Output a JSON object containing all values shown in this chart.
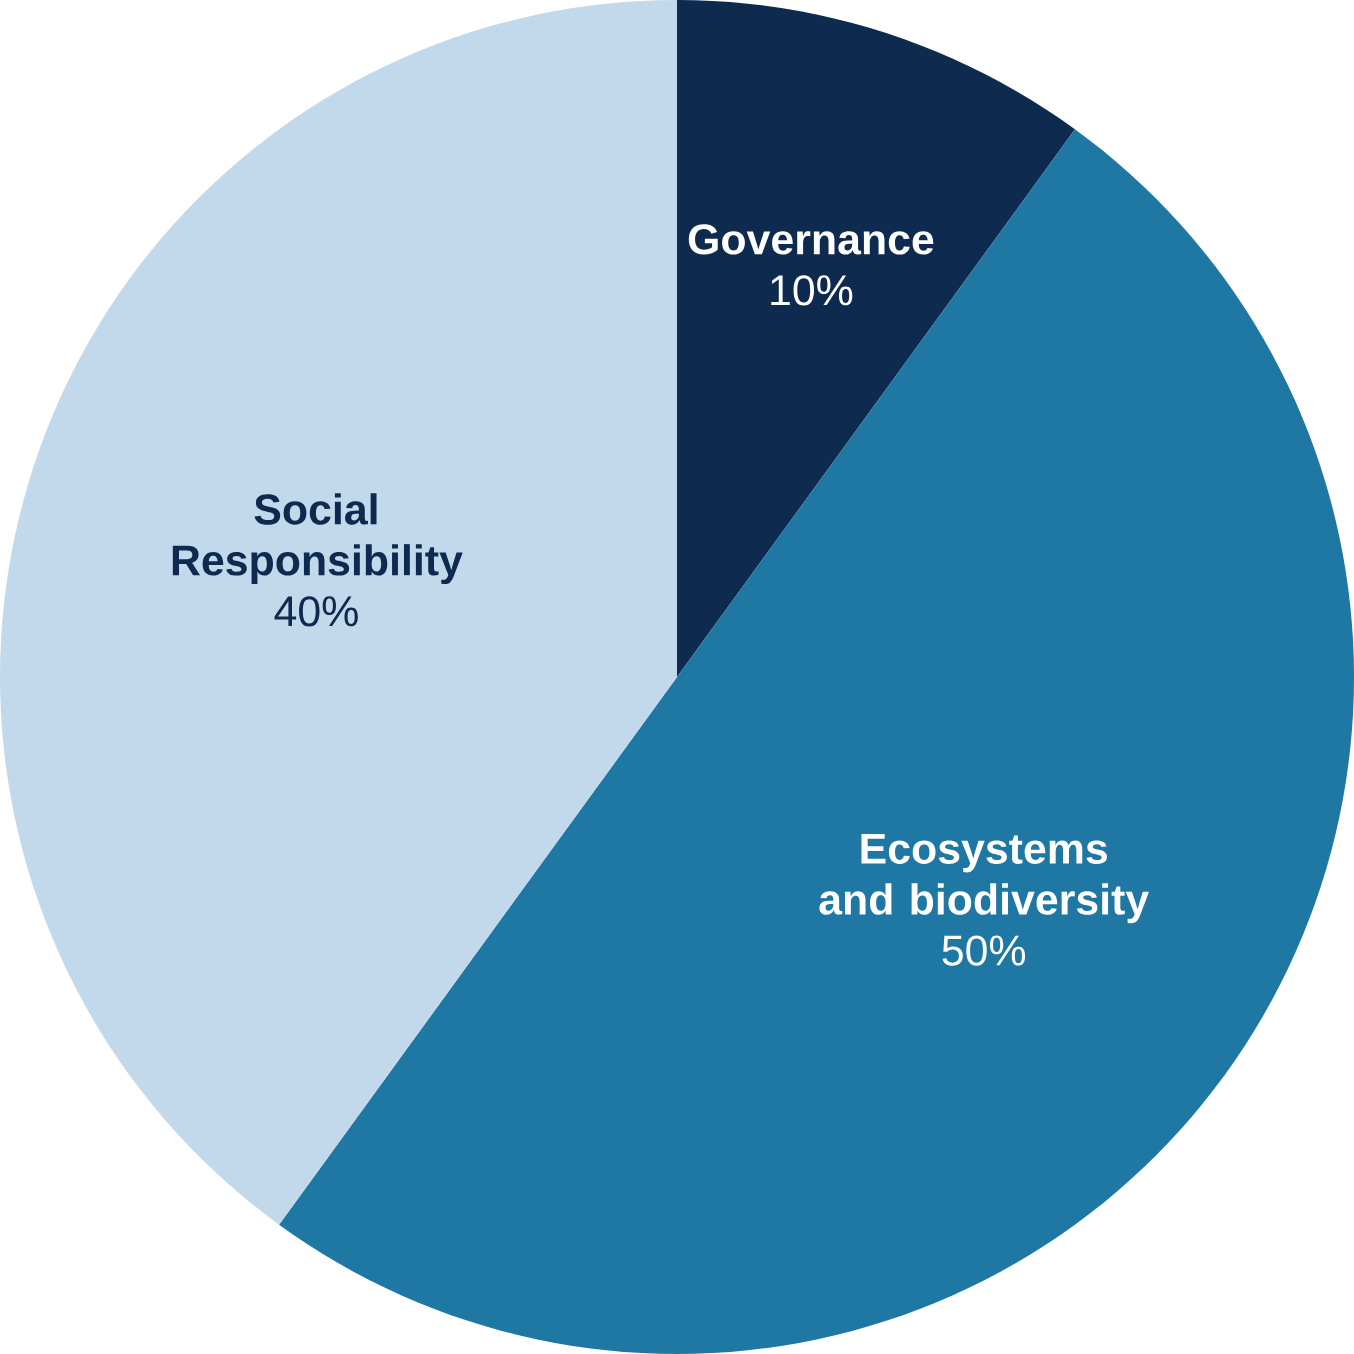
{
  "chart_data": {
    "type": "pie",
    "categories": [
      "Governance",
      "Ecosystems and biodiversity",
      "Social Responsibility"
    ],
    "values": [
      10,
      50,
      40
    ],
    "value_labels": [
      "10%",
      "50%",
      "40%"
    ],
    "colors": [
      "#0e2a4f",
      "#1f77a3",
      "#c2d9ec"
    ]
  }
}
